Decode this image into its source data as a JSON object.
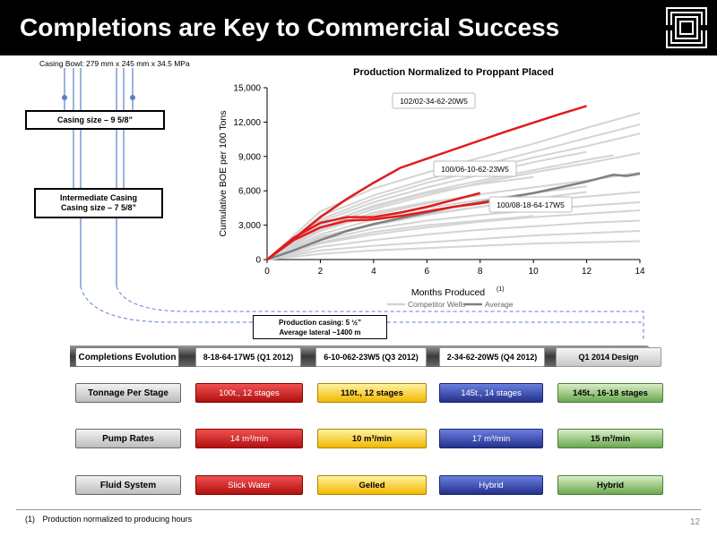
{
  "header": {
    "title": "Completions are Key to Commercial Success"
  },
  "casing_diagram": {
    "casing_bowl": "Casing Bowl: 279 mm x 245 mm x 34.5 MPa",
    "surface_casing": "Casing size – 9 5/8”",
    "intermediate_title": "Intermediate Casing",
    "intermediate_size": "Casing size – 7 5/8”",
    "production_casing": "Production casing: 5 ½”",
    "average_lateral": "Average lateral  ~1400 m"
  },
  "chart_data": {
    "type": "line",
    "title": "Production Normalized to Proppant Placed",
    "xlabel": "Months Produced",
    "xlabel_superscript": "(1)",
    "ylabel": "Cumulative BOE per 100 Tons",
    "xlim": [
      0,
      14
    ],
    "ylim": [
      0,
      15000
    ],
    "x_ticks": [
      "0",
      "2",
      "4",
      "6",
      "8",
      "10",
      "12",
      "14"
    ],
    "y_ticks": [
      "0",
      "3,000",
      "6,000",
      "9,000",
      "12,000",
      "15,000"
    ],
    "grid": false,
    "legend_position": "bottom",
    "legend": [
      "Competitor Wells",
      "Average"
    ],
    "colors": {
      "competitor": "#d4d4d4",
      "average": "#7f7f7f",
      "highlight": "#e31a1c"
    },
    "highlight_series": [
      {
        "name": "102/02-34-62-20W5",
        "x": [
          0,
          1,
          2,
          3,
          4,
          5,
          6,
          7,
          8,
          9,
          10,
          11,
          12
        ],
        "y": [
          0,
          1800,
          3700,
          5300,
          6700,
          8000,
          8800,
          9600,
          10400,
          11200,
          11950,
          12700,
          13400
        ]
      },
      {
        "name": "100/06-10-62-23W5",
        "x": [
          0,
          1,
          2,
          3,
          4,
          5,
          6,
          7,
          7.5,
          8
        ],
        "y": [
          0,
          1900,
          3200,
          3700,
          3700,
          4100,
          4600,
          5200,
          5500,
          5800
        ]
      },
      {
        "name": "100/08-18-64-17W5",
        "x": [
          0,
          1,
          2,
          3,
          4,
          5,
          6,
          7,
          8,
          9
        ],
        "y": [
          0,
          1700,
          2800,
          3400,
          3500,
          3800,
          4200,
          4600,
          4900,
          5300
        ]
      }
    ],
    "average_series": {
      "name": "Average",
      "x": [
        0,
        1,
        2,
        3,
        4,
        5,
        6,
        7,
        8,
        9,
        10,
        11,
        12,
        13,
        13.5,
        14
      ],
      "y": [
        0,
        800,
        1700,
        2500,
        3100,
        3600,
        4100,
        4600,
        5000,
        5400,
        5800,
        6300,
        6800,
        7400,
        7300,
        7500
      ]
    },
    "competitor_series": [
      {
        "x": [
          0,
          2,
          4,
          6,
          8,
          10,
          12,
          14
        ],
        "y": [
          0,
          4200,
          6200,
          7600,
          8900,
          10100,
          11500,
          12800
        ]
      },
      {
        "x": [
          0,
          2,
          4,
          6,
          8,
          10,
          12,
          14
        ],
        "y": [
          0,
          3800,
          5600,
          7000,
          8200,
          9400,
          10600,
          11800
        ]
      },
      {
        "x": [
          0,
          2,
          4,
          6,
          8,
          10,
          12
        ],
        "y": [
          0,
          3300,
          5000,
          6300,
          7400,
          8500,
          9400
        ]
      },
      {
        "x": [
          0,
          2,
          4,
          6,
          8,
          10,
          12,
          14
        ],
        "y": [
          0,
          2800,
          4400,
          5600,
          6700,
          7600,
          8400,
          9300
        ]
      },
      {
        "x": [
          0,
          2,
          4,
          6,
          8,
          10
        ],
        "y": [
          0,
          3100,
          4600,
          5800,
          6600,
          7200
        ]
      },
      {
        "x": [
          0,
          2,
          4,
          6,
          8,
          10,
          12,
          14
        ],
        "y": [
          0,
          2500,
          3900,
          4900,
          5700,
          6300,
          6900,
          7600
        ]
      },
      {
        "x": [
          0,
          2,
          4,
          6,
          8,
          10,
          12
        ],
        "y": [
          0,
          2200,
          3500,
          4500,
          5200,
          5800,
          6400
        ]
      },
      {
        "x": [
          0,
          2,
          4,
          6,
          8,
          10,
          12,
          14
        ],
        "y": [
          0,
          2000,
          3100,
          4000,
          4600,
          5100,
          5500,
          5900
        ]
      },
      {
        "x": [
          0,
          2,
          4,
          6,
          8
        ],
        "y": [
          0,
          2600,
          4100,
          5000,
          5600
        ]
      },
      {
        "x": [
          0,
          2,
          4,
          6,
          8,
          10,
          12,
          14
        ],
        "y": [
          0,
          1700,
          2700,
          3400,
          3900,
          4300,
          4700,
          5000
        ]
      },
      {
        "x": [
          0,
          2,
          4,
          6,
          8,
          10,
          12,
          14
        ],
        "y": [
          0,
          1400,
          2200,
          2800,
          3300,
          3700,
          4000,
          4300
        ]
      },
      {
        "x": [
          0,
          2,
          4,
          6,
          8,
          10
        ],
        "y": [
          0,
          1500,
          2400,
          3000,
          3400,
          3800
        ]
      },
      {
        "x": [
          0,
          2,
          4,
          6,
          8,
          10,
          12,
          14
        ],
        "y": [
          0,
          1100,
          1700,
          2200,
          2600,
          2900,
          3200,
          3400
        ]
      },
      {
        "x": [
          0,
          2,
          4,
          6,
          8,
          10,
          12,
          14
        ],
        "y": [
          0,
          800,
          1200,
          1500,
          1800,
          2100,
          2300,
          2500
        ]
      },
      {
        "x": [
          0,
          2,
          4,
          6,
          8,
          10,
          12,
          14
        ],
        "y": [
          0,
          500,
          800,
          1000,
          1200,
          1400,
          1500,
          1600
        ]
      },
      {
        "x": [
          0,
          2,
          4,
          6,
          8,
          10,
          12
        ],
        "y": [
          0,
          1900,
          3000,
          3900,
          4600,
          5300,
          5900
        ]
      },
      {
        "x": [
          0,
          2,
          4,
          6,
          8,
          10,
          12,
          13
        ],
        "y": [
          0,
          3000,
          4700,
          5900,
          6900,
          7800,
          8700,
          9100
        ]
      },
      {
        "x": [
          0,
          2,
          4,
          6,
          8,
          10,
          12,
          14
        ],
        "y": [
          0,
          3500,
          5300,
          6700,
          7800,
          8900,
          9900,
          11000
        ]
      }
    ]
  },
  "evolution": {
    "label": "Completions Evolution",
    "stages": [
      "8-18-64-17W5 (Q1 2012)",
      "6-10-062-23W5 (Q3 2012)",
      "2-34-62-20W5 (Q4 2012)",
      "Q1 2014 Design"
    ]
  },
  "tonnage": {
    "label": "Tonnage Per Stage",
    "values": [
      "100t., 12 stages",
      "110t., 12 stages",
      "145t., 14 stages",
      "145t., 16-18 stages"
    ]
  },
  "pump_rates": {
    "label": "Pump Rates",
    "values": [
      "14 m³/min",
      "10 m³/min",
      "17 m³/min",
      "15 m³/min"
    ]
  },
  "fluid_system": {
    "label": "Fluid System",
    "values": [
      "Slick Water",
      "Gelled",
      "Hybrid",
      "Hybrid"
    ]
  },
  "footer": {
    "footnote_number": "(1)",
    "footnote_text": "Production normalized to producing hours",
    "page_number": "12"
  }
}
